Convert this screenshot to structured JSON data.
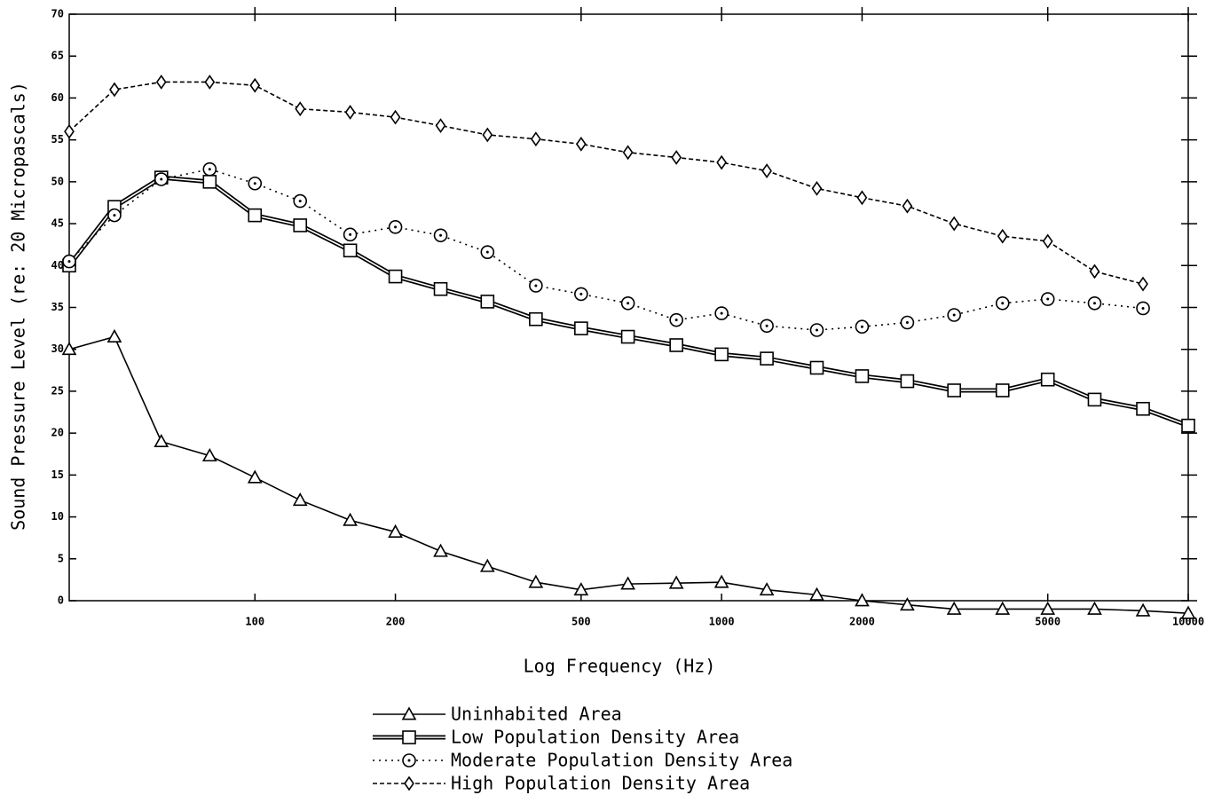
{
  "chart_data": {
    "type": "line",
    "x_label": "Log Frequency (Hz)",
    "y_label": "Sound Pressure Level (re: 20 Micropascals)",
    "x": [
      40,
      50,
      63,
      80,
      100,
      125,
      160,
      200,
      250,
      315,
      400,
      500,
      630,
      800,
      1000,
      1250,
      1600,
      2000,
      2500,
      3150,
      4000,
      5000,
      6300,
      8000,
      10000
    ],
    "xlim": [
      40,
      10000
    ],
    "xlog": true,
    "xticks": [
      100,
      200,
      500,
      1000,
      2000,
      5000,
      10000
    ],
    "ylim": [
      0,
      70
    ],
    "yticks": [
      0,
      5,
      10,
      15,
      20,
      25,
      30,
      35,
      40,
      45,
      50,
      55,
      60,
      65,
      70
    ],
    "series": [
      {
        "name": "Uninhabited Area",
        "color": "#000000",
        "marker": "triangle",
        "line_style": "solid",
        "values": [
          30,
          31.5,
          19,
          17.3,
          14.7,
          12,
          9.6,
          8.2,
          5.9,
          4.1,
          2.2,
          1.3,
          2,
          2.1,
          2.2,
          1.3,
          0.7,
          0,
          -0.5,
          -1,
          -1,
          -1,
          -1,
          -1.2,
          -1.5
        ]
      },
      {
        "name": "Low Population Density Area",
        "color": "#000000",
        "marker": "square",
        "line_style": "double",
        "values": [
          40,
          47,
          50.5,
          50,
          46,
          44.8,
          41.8,
          38.7,
          37.2,
          35.7,
          33.6,
          32.5,
          31.5,
          30.5,
          29.4,
          28.9,
          27.8,
          26.8,
          26.2,
          25.1,
          25.1,
          26.4,
          24,
          22.9,
          20.9
        ]
      },
      {
        "name": "Moderate Population Density Area",
        "color": "#000000",
        "marker": "circle",
        "line_style": "dotted",
        "values": [
          40.5,
          46,
          50.3,
          51.5,
          49.8,
          47.7,
          43.7,
          44.6,
          43.6,
          41.6,
          37.6,
          36.6,
          35.5,
          33.5,
          34.3,
          32.8,
          32.3,
          32.7,
          33.2,
          34.1,
          35.5,
          36,
          35.5,
          34.9,
          null
        ]
      },
      {
        "name": "High Population Density Area",
        "color": "#000000",
        "marker": "diamond",
        "line_style": "dashed",
        "values": [
          56,
          61,
          61.9,
          61.9,
          61.5,
          58.7,
          58.3,
          57.7,
          56.7,
          55.6,
          55.1,
          54.5,
          53.5,
          52.9,
          52.3,
          51.3,
          49.2,
          48.1,
          47.1,
          45,
          43.5,
          42.9,
          39.3,
          37.8,
          null
        ]
      }
    ]
  }
}
